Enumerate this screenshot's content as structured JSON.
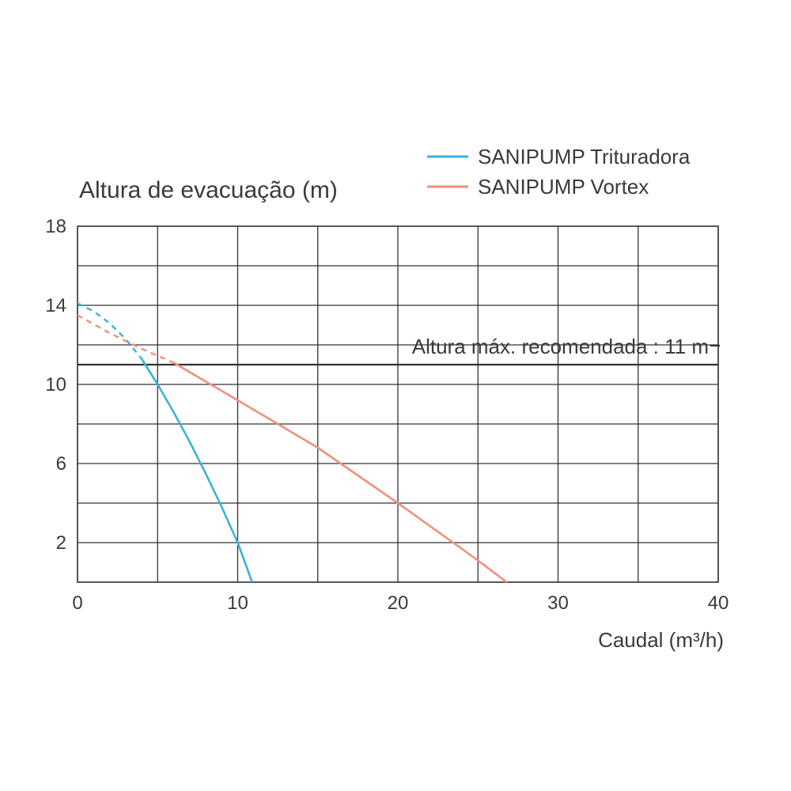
{
  "chart_data": {
    "type": "line",
    "ylabel": "Altura de evacuação (m)",
    "xlabel": "Caudal (m³/h)",
    "xlim": [
      0,
      40
    ],
    "ylim": [
      0,
      18
    ],
    "x_ticks": [
      0,
      10,
      20,
      30,
      40
    ],
    "y_ticks": [
      2,
      6,
      10,
      14,
      18
    ],
    "grid": true,
    "legend_position": "top-right",
    "series": [
      {
        "name": "SANIPUMP Trituradora",
        "color": "#3bb3d6",
        "dashed_segment": {
          "x": [
            0,
            1,
            2,
            3,
            4
          ],
          "y": [
            14.1,
            13.7,
            13.1,
            12.3,
            11.3
          ]
        },
        "values": {
          "x": [
            4,
            5,
            6,
            7,
            8,
            9,
            10,
            10.5,
            10.9
          ],
          "y": [
            11.3,
            10.0,
            8.6,
            7.1,
            5.5,
            3.8,
            2.0,
            0.9,
            0
          ]
        }
      },
      {
        "name": "SANIPUMP Vortex",
        "color": "#f0907a",
        "dashed_segment": {
          "x": [
            0,
            2,
            4,
            6
          ],
          "y": [
            13.5,
            12.6,
            11.8,
            11.1
          ]
        },
        "values": {
          "x": [
            6,
            10,
            15,
            20,
            25,
            26.8
          ],
          "y": [
            11.1,
            9.2,
            6.8,
            4.0,
            1.1,
            0
          ]
        }
      }
    ],
    "reference_line": {
      "y": 11,
      "label": "Altura máx. recomendada : 11 m"
    }
  }
}
